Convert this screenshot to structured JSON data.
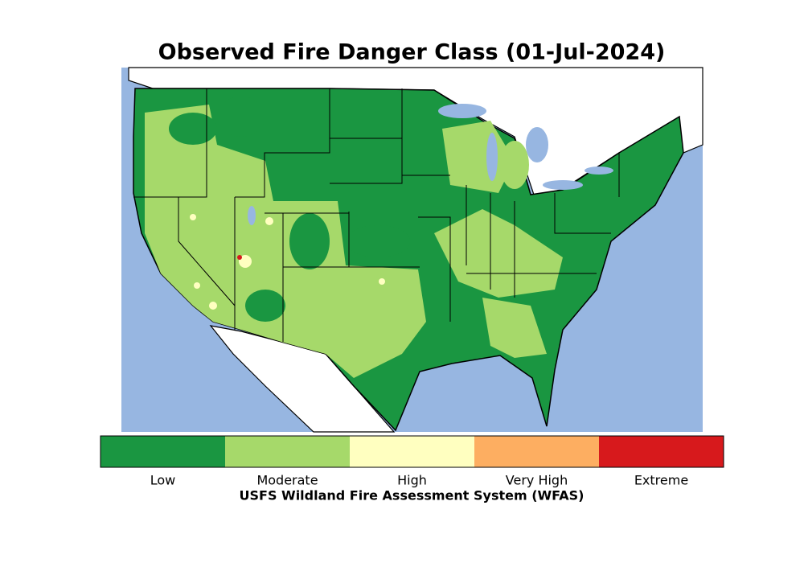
{
  "title": "Observed Fire Danger Class (01-Jul-2024)",
  "colorbar": {
    "classes": [
      {
        "label": "Low",
        "color": "#1a9641"
      },
      {
        "label": "Moderate",
        "color": "#a6d96a"
      },
      {
        "label": "High",
        "color": "#ffffc0"
      },
      {
        "label": "Very High",
        "color": "#fdae61"
      },
      {
        "label": "Extreme",
        "color": "#d7191c"
      }
    ],
    "label": "USFS Wildland Fire Assessment System (WFAS)"
  }
}
